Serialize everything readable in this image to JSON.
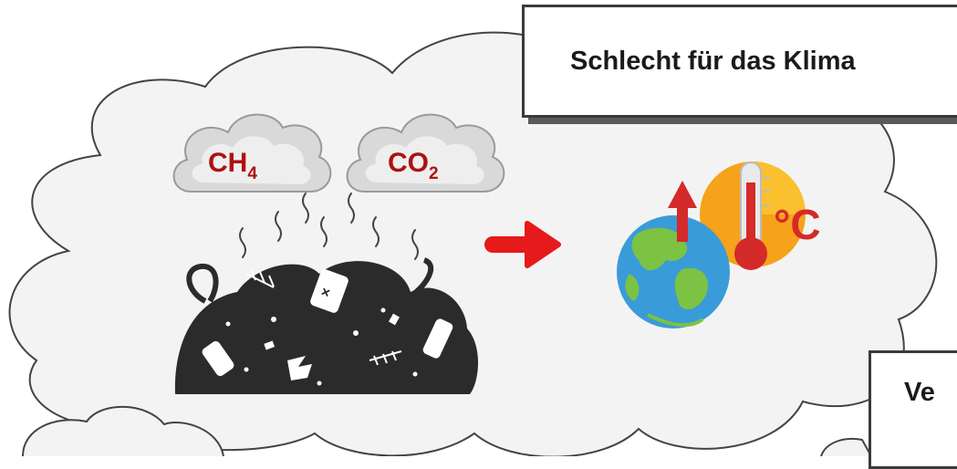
{
  "labels": {
    "methane": "CH",
    "methane_sub": "4",
    "co2": "CO",
    "co2_sub": "2",
    "degree_c": "°C"
  },
  "boxes": {
    "climate": "Schlecht für das Klima",
    "partial": "Ve"
  },
  "colors": {
    "gas_text": "#b01010",
    "arrow": "#e61a1a",
    "waste": "#2b2b2b",
    "cloud_fill": "#f3f3f3",
    "cloud_stroke": "#444444",
    "earth_ocean": "#3a9bd9",
    "earth_land": "#7cc243",
    "sun_orange": "#f6a21a",
    "thermo_red": "#d42a2a"
  },
  "icons": [
    "cloud-icon",
    "waste-pile-icon",
    "arrow-right-icon",
    "earth-icon",
    "thermometer-icon",
    "up-arrow-icon"
  ]
}
